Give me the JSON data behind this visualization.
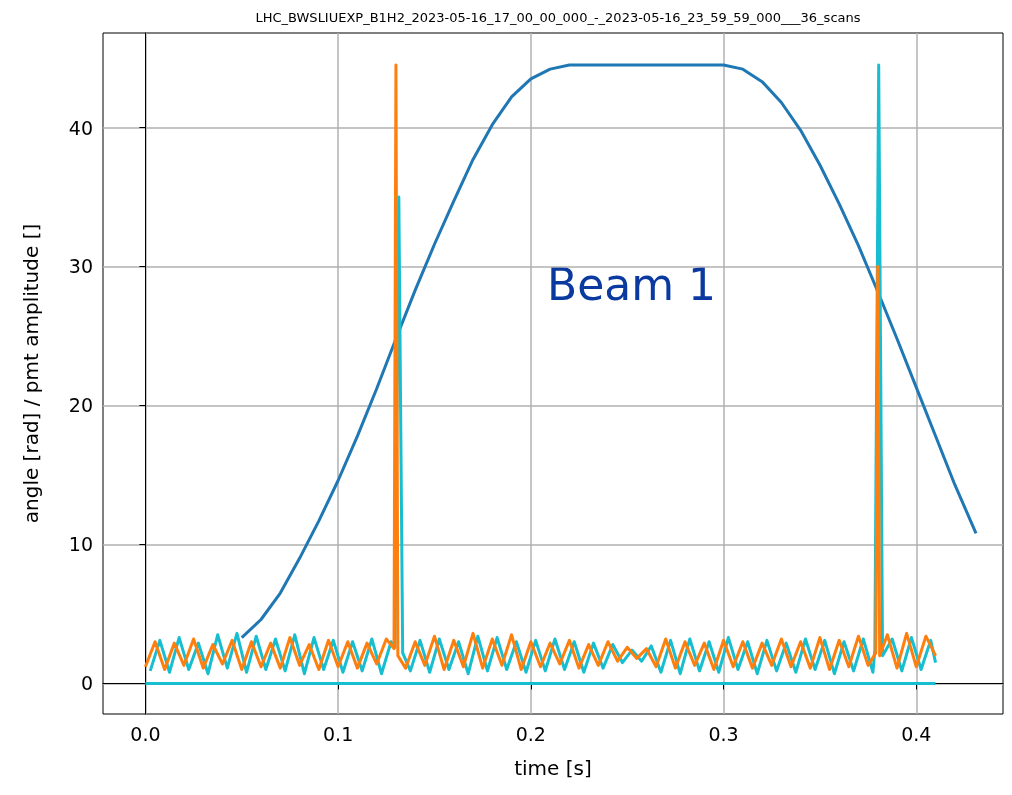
{
  "chart_data": {
    "type": "line",
    "title": "LHC_BWSLIUEXP_B1H2_2023-05-16_17_00_00_000_-_2023-05-16_23_59_59_000___36_scans",
    "xlabel": "time [s]",
    "ylabel": "angle [rad] / pmt amplitude []",
    "annotations": [
      "Beam 1"
    ],
    "x": [
      0,
      0.005,
      0.01,
      0.015,
      0.02,
      0.025,
      0.03,
      0.035,
      0.04,
      0.045,
      0.05,
      0.055,
      0.06,
      0.065,
      0.07,
      0.075,
      0.08,
      0.085,
      0.09,
      0.095,
      0.1,
      0.105,
      0.11,
      0.115,
      0.12,
      0.125,
      0.129,
      0.13,
      0.131,
      0.135,
      0.14,
      0.145,
      0.15,
      0.155,
      0.16,
      0.165,
      0.17,
      0.175,
      0.18,
      0.185,
      0.19,
      0.195,
      0.2,
      0.205,
      0.21,
      0.215,
      0.22,
      0.225,
      0.23,
      0.235,
      0.24,
      0.245,
      0.25,
      0.255,
      0.26,
      0.265,
      0.27,
      0.275,
      0.28,
      0.285,
      0.29,
      0.295,
      0.3,
      0.305,
      0.31,
      0.315,
      0.32,
      0.325,
      0.33,
      0.335,
      0.34,
      0.345,
      0.35,
      0.355,
      0.36,
      0.365,
      0.37,
      0.375,
      0.379,
      0.38,
      0.381,
      0.385,
      0.39,
      0.395,
      0.4,
      0.405,
      0.41
    ],
    "series": [
      {
        "color": "#1f77b4",
        "x": [
          0.05,
          0.06,
          0.07,
          0.08,
          0.09,
          0.1,
          0.11,
          0.12,
          0.13,
          0.14,
          0.15,
          0.16,
          0.17,
          0.18,
          0.19,
          0.2,
          0.21,
          0.22,
          0.3,
          0.31,
          0.32,
          0.33,
          0.34,
          0.35,
          0.36,
          0.37,
          0.38,
          0.39,
          0.4,
          0.41,
          0.42,
          0.431
        ],
        "values": [
          3.3,
          4.6,
          6.5,
          9.0,
          11.7,
          14.6,
          17.8,
          21.2,
          24.8,
          28.3,
          31.6,
          34.7,
          37.7,
          40.2,
          42.2,
          43.5,
          44.2,
          44.5,
          44.5,
          44.2,
          43.3,
          41.8,
          39.8,
          37.3,
          34.5,
          31.5,
          28.2,
          24.8,
          21.3,
          17.8,
          14.3,
          10.8
        ]
      },
      {
        "color": "#17becf",
        "x": [
          0,
          0.41
        ],
        "values": [
          0,
          0
        ]
      },
      {
        "color": "#17becf",
        "x": [
          0.0025,
          0.0075,
          0.0125,
          0.0175,
          0.0225,
          0.0275,
          0.0325,
          0.0375,
          0.0425,
          0.0475,
          0.0525,
          0.0575,
          0.0625,
          0.0675,
          0.0725,
          0.0775,
          0.0825,
          0.0875,
          0.0925,
          0.0975,
          0.1025,
          0.1075,
          0.1125,
          0.1175,
          0.1225,
          0.1275,
          0.1295,
          0.1315,
          0.1335,
          0.1375,
          0.1425,
          0.1475,
          0.1525,
          0.1575,
          0.1625,
          0.1675,
          0.1725,
          0.1775,
          0.1825,
          0.1875,
          0.1925,
          0.1975,
          0.2025,
          0.2075,
          0.2125,
          0.2175,
          0.2225,
          0.2275,
          0.2325,
          0.2375,
          0.2425,
          0.2475,
          0.2525,
          0.2575,
          0.2625,
          0.2675,
          0.2725,
          0.2775,
          0.2825,
          0.2875,
          0.2925,
          0.2975,
          0.3025,
          0.3075,
          0.3125,
          0.3175,
          0.3225,
          0.3275,
          0.3325,
          0.3375,
          0.3425,
          0.3475,
          0.3525,
          0.3575,
          0.3625,
          0.3675,
          0.3725,
          0.3775,
          0.3785,
          0.3805,
          0.3825,
          0.3875,
          0.3925,
          0.3975,
          0.4025,
          0.4075,
          0.41
        ],
        "values": [
          0.9,
          3.1,
          0.8,
          3.3,
          1.0,
          2.9,
          0.7,
          3.5,
          1.1,
          3.6,
          0.8,
          3.4,
          1.0,
          3.2,
          0.9,
          3.5,
          0.7,
          3.3,
          1.0,
          3.1,
          0.8,
          3.0,
          0.9,
          3.2,
          0.7,
          3.0,
          2.6,
          35,
          2.2,
          0.9,
          3.1,
          0.8,
          3.2,
          1.0,
          3.0,
          0.7,
          3.4,
          0.9,
          3.3,
          1.0,
          3.0,
          0.8,
          3.1,
          0.9,
          3.2,
          1.0,
          3.0,
          0.8,
          2.9,
          1.1,
          2.8,
          1.5,
          2.4,
          1.6,
          2.7,
          0.8,
          3.1,
          0.7,
          3.2,
          0.9,
          3.0,
          0.8,
          3.3,
          1.0,
          3.0,
          0.7,
          3.1,
          0.9,
          2.9,
          0.8,
          3.2,
          1.0,
          3.1,
          0.7,
          3.0,
          0.9,
          3.2,
          0.8,
          2.4,
          44.5,
          2.0,
          3.2,
          0.9,
          3.3,
          1.0,
          3.1,
          1.5
        ]
      },
      {
        "color": "#ff7f0e",
        "values": [
          1.2,
          3.0,
          1.0,
          2.9,
          1.3,
          3.2,
          1.1,
          2.8,
          1.4,
          3.1,
          1.0,
          3.0,
          1.2,
          2.9,
          1.1,
          3.3,
          1.3,
          2.8,
          1.0,
          3.1,
          1.2,
          3.0,
          1.1,
          2.9,
          1.4,
          3.2,
          2.5,
          44.5,
          2.0,
          1.1,
          3.0,
          1.3,
          3.4,
          1.0,
          3.1,
          1.2,
          3.6,
          1.1,
          3.2,
          1.3,
          3.5,
          1.0,
          3.0,
          1.2,
          2.9,
          1.4,
          3.1,
          1.1,
          2.8,
          1.3,
          3.0,
          1.6,
          2.6,
          1.8,
          2.5,
          1.2,
          3.2,
          1.1,
          3.0,
          1.3,
          2.9,
          1.0,
          3.1,
          1.2,
          3.0,
          1.1,
          2.9,
          1.3,
          3.2,
          1.2,
          3.0,
          1.1,
          3.3,
          1.0,
          3.1,
          1.2,
          3.4,
          1.3,
          2.2,
          30,
          2.0,
          3.5,
          1.1,
          3.6,
          1.2,
          3.4,
          2.0
        ]
      }
    ],
    "xlim": [
      -0.022,
      0.445
    ],
    "xticks": [
      {
        "value": 0,
        "label": "0.0"
      },
      0.1,
      0.2,
      0.3,
      0.4
    ],
    "ylim": [
      -2.2,
      46.8
    ],
    "yticks": [
      0,
      10,
      20,
      30,
      40
    ],
    "grid": true
  }
}
